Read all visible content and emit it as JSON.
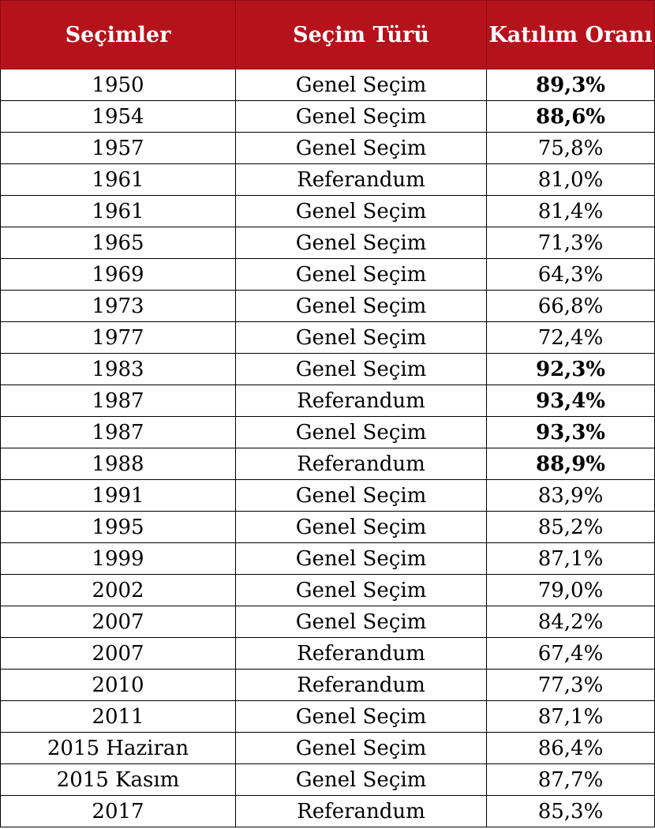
{
  "chart_data": {
    "type": "table",
    "columns": [
      "Seçimler",
      "Seçim Türü",
      "Katılım Oranı"
    ],
    "rows": [
      {
        "year": "1950",
        "type": "Genel Seçim",
        "rate": "89,3%",
        "bold": true
      },
      {
        "year": "1954",
        "type": "Genel Seçim",
        "rate": "88,6%",
        "bold": true
      },
      {
        "year": "1957",
        "type": "Genel Seçim",
        "rate": "75,8%",
        "bold": false
      },
      {
        "year": "1961",
        "type": "Referandum",
        "rate": "81,0%",
        "bold": false
      },
      {
        "year": "1961",
        "type": "Genel Seçim",
        "rate": "81,4%",
        "bold": false
      },
      {
        "year": "1965",
        "type": "Genel Seçim",
        "rate": "71,3%",
        "bold": false
      },
      {
        "year": "1969",
        "type": "Genel Seçim",
        "rate": "64,3%",
        "bold": false
      },
      {
        "year": "1973",
        "type": "Genel Seçim",
        "rate": "66,8%",
        "bold": false
      },
      {
        "year": "1977",
        "type": "Genel Seçim",
        "rate": "72,4%",
        "bold": false
      },
      {
        "year": "1983",
        "type": "Genel Seçim",
        "rate": "92,3%",
        "bold": true
      },
      {
        "year": "1987",
        "type": "Referandum",
        "rate": "93,4%",
        "bold": true
      },
      {
        "year": "1987",
        "type": "Genel Seçim",
        "rate": "93,3%",
        "bold": true
      },
      {
        "year": "1988",
        "type": "Referandum",
        "rate": "88,9%",
        "bold": true
      },
      {
        "year": "1991",
        "type": "Genel Seçim",
        "rate": "83,9%",
        "bold": false
      },
      {
        "year": "1995",
        "type": "Genel Seçim",
        "rate": "85,2%",
        "bold": false
      },
      {
        "year": "1999",
        "type": "Genel Seçim",
        "rate": "87,1%",
        "bold": false
      },
      {
        "year": "2002",
        "type": "Genel Seçim",
        "rate": "79,0%",
        "bold": false
      },
      {
        "year": "2007",
        "type": "Genel Seçim",
        "rate": "84,2%",
        "bold": false
      },
      {
        "year": "2007",
        "type": "Referandum",
        "rate": "67,4%",
        "bold": false
      },
      {
        "year": "2010",
        "type": "Referandum",
        "rate": "77,3%",
        "bold": false
      },
      {
        "year": "2011",
        "type": "Genel Seçim",
        "rate": "87,1%",
        "bold": false
      },
      {
        "year": "2015 Haziran",
        "type": "Genel Seçim",
        "rate": "86,4%",
        "bold": false
      },
      {
        "year": "2015 Kasım",
        "type": "Genel Seçim",
        "rate": "87,7%",
        "bold": false
      },
      {
        "year": "2017",
        "type": "Referandum",
        "rate": "85,3%",
        "bold": false
      }
    ]
  },
  "colors": {
    "header_background": "#b5121b",
    "header_text": "#ffffff",
    "border": "#000000"
  }
}
